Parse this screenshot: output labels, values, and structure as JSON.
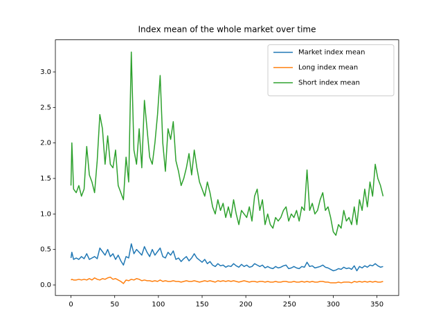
{
  "chart_data": {
    "type": "line",
    "title": "Index mean of the whole market over time",
    "x": [
      0,
      1,
      3,
      6,
      9,
      12,
      15,
      18,
      21,
      24,
      27,
      30,
      33,
      36,
      39,
      42,
      45,
      48,
      51,
      54,
      57,
      60,
      63,
      66,
      69,
      72,
      75,
      78,
      81,
      84,
      87,
      90,
      93,
      96,
      99,
      102,
      105,
      108,
      111,
      114,
      117,
      120,
      123,
      126,
      129,
      132,
      135,
      138,
      141,
      144,
      147,
      150,
      153,
      156,
      159,
      162,
      165,
      168,
      171,
      174,
      177,
      180,
      183,
      186,
      189,
      192,
      195,
      198,
      201,
      204,
      207,
      210,
      213,
      216,
      219,
      222,
      225,
      228,
      231,
      234,
      237,
      240,
      243,
      246,
      249,
      252,
      255,
      258,
      261,
      264,
      267,
      270,
      273,
      276,
      279,
      282,
      285,
      288,
      291,
      294,
      297,
      300,
      303,
      306,
      309,
      312,
      315,
      318,
      321,
      324,
      327,
      330,
      333,
      336,
      339,
      342,
      345,
      348,
      351,
      354,
      357
    ],
    "series": [
      {
        "name": "Market index mean",
        "color": "#1f77b4",
        "values": [
          0.38,
          0.46,
          0.36,
          0.38,
          0.36,
          0.4,
          0.37,
          0.44,
          0.36,
          0.38,
          0.4,
          0.37,
          0.52,
          0.47,
          0.42,
          0.5,
          0.4,
          0.44,
          0.36,
          0.42,
          0.34,
          0.28,
          0.4,
          0.38,
          0.58,
          0.44,
          0.5,
          0.46,
          0.42,
          0.54,
          0.46,
          0.4,
          0.5,
          0.42,
          0.47,
          0.52,
          0.4,
          0.38,
          0.46,
          0.42,
          0.48,
          0.36,
          0.38,
          0.33,
          0.37,
          0.4,
          0.34,
          0.38,
          0.44,
          0.38,
          0.35,
          0.32,
          0.36,
          0.3,
          0.33,
          0.28,
          0.26,
          0.3,
          0.27,
          0.28,
          0.25,
          0.27,
          0.26,
          0.3,
          0.27,
          0.25,
          0.29,
          0.26,
          0.28,
          0.25,
          0.26,
          0.3,
          0.28,
          0.26,
          0.28,
          0.24,
          0.26,
          0.24,
          0.23,
          0.26,
          0.24,
          0.25,
          0.27,
          0.28,
          0.23,
          0.24,
          0.26,
          0.24,
          0.23,
          0.26,
          0.25,
          0.32,
          0.26,
          0.27,
          0.24,
          0.25,
          0.26,
          0.28,
          0.25,
          0.24,
          0.22,
          0.2,
          0.21,
          0.23,
          0.22,
          0.25,
          0.23,
          0.24,
          0.22,
          0.27,
          0.2,
          0.26,
          0.24,
          0.27,
          0.25,
          0.28,
          0.27,
          0.3,
          0.27,
          0.25,
          0.26
        ]
      },
      {
        "name": "Long index mean",
        "color": "#ff7f0e",
        "values": [
          0.07,
          0.08,
          0.07,
          0.07,
          0.08,
          0.07,
          0.08,
          0.07,
          0.09,
          0.07,
          0.1,
          0.08,
          0.07,
          0.09,
          0.08,
          0.1,
          0.11,
          0.08,
          0.09,
          0.07,
          0.05,
          0.02,
          0.07,
          0.06,
          0.08,
          0.07,
          0.09,
          0.08,
          0.06,
          0.07,
          0.06,
          0.06,
          0.05,
          0.06,
          0.05,
          0.07,
          0.05,
          0.06,
          0.05,
          0.05,
          0.06,
          0.05,
          0.05,
          0.04,
          0.05,
          0.06,
          0.05,
          0.05,
          0.06,
          0.05,
          0.04,
          0.05,
          0.06,
          0.05,
          0.06,
          0.05,
          0.04,
          0.06,
          0.05,
          0.06,
          0.05,
          0.06,
          0.05,
          0.06,
          0.05,
          0.04,
          0.05,
          0.06,
          0.05,
          0.04,
          0.05,
          0.05,
          0.04,
          0.05,
          0.05,
          0.04,
          0.05,
          0.04,
          0.04,
          0.05,
          0.04,
          0.04,
          0.05,
          0.05,
          0.04,
          0.04,
          0.05,
          0.04,
          0.04,
          0.05,
          0.04,
          0.05,
          0.04,
          0.05,
          0.04,
          0.04,
          0.05,
          0.05,
          0.04,
          0.04,
          0.03,
          0.03,
          0.03,
          0.04,
          0.03,
          0.04,
          0.04,
          0.04,
          0.03,
          0.05,
          0.04,
          0.05,
          0.04,
          0.05,
          0.04,
          0.05,
          0.04,
          0.05,
          0.04,
          0.04,
          0.05
        ]
      },
      {
        "name": "Short index mean",
        "color": "#2ca02c",
        "values": [
          1.4,
          2.0,
          1.35,
          1.3,
          1.4,
          1.25,
          1.35,
          1.95,
          1.55,
          1.45,
          1.3,
          1.75,
          2.4,
          2.2,
          1.7,
          2.1,
          1.7,
          1.65,
          1.9,
          1.4,
          1.3,
          1.2,
          1.8,
          1.45,
          3.28,
          1.9,
          1.7,
          2.2,
          1.65,
          2.6,
          2.2,
          1.8,
          1.7,
          2.0,
          2.4,
          2.95,
          2.0,
          1.6,
          2.2,
          2.05,
          2.3,
          1.75,
          1.6,
          1.4,
          1.5,
          1.65,
          1.85,
          1.55,
          1.9,
          1.65,
          1.45,
          1.35,
          1.25,
          1.45,
          1.3,
          1.1,
          1.0,
          1.2,
          1.05,
          1.15,
          0.95,
          1.1,
          0.95,
          1.2,
          1.0,
          0.85,
          1.05,
          1.0,
          0.95,
          1.1,
          0.9,
          1.25,
          1.35,
          1.05,
          1.2,
          0.85,
          1.0,
          0.85,
          0.8,
          0.95,
          0.9,
          0.95,
          1.05,
          1.1,
          0.9,
          1.0,
          0.95,
          1.05,
          0.9,
          1.1,
          1.05,
          1.62,
          1.05,
          1.15,
          1.0,
          1.05,
          1.2,
          1.3,
          1.05,
          1.1,
          0.95,
          0.75,
          0.7,
          0.85,
          0.8,
          1.05,
          0.9,
          0.95,
          0.85,
          1.1,
          0.85,
          1.2,
          1.05,
          1.35,
          1.1,
          1.45,
          1.25,
          1.7,
          1.5,
          1.4,
          1.25
        ]
      }
    ],
    "xlim": [
      -17.85,
      374.85
    ],
    "xticks": [
      0,
      50,
      100,
      150,
      200,
      250,
      300,
      350
    ],
    "ylim": [
      -0.148,
      3.452
    ],
    "yticks": [
      {
        "value": 0,
        "label": "0.0"
      },
      0.5,
      {
        "value": 1,
        "label": "1.0"
      },
      1.5,
      {
        "value": 2,
        "label": "2.0"
      },
      2.5,
      {
        "value": 3,
        "label": "3.0"
      }
    ],
    "legend": "upper right"
  }
}
